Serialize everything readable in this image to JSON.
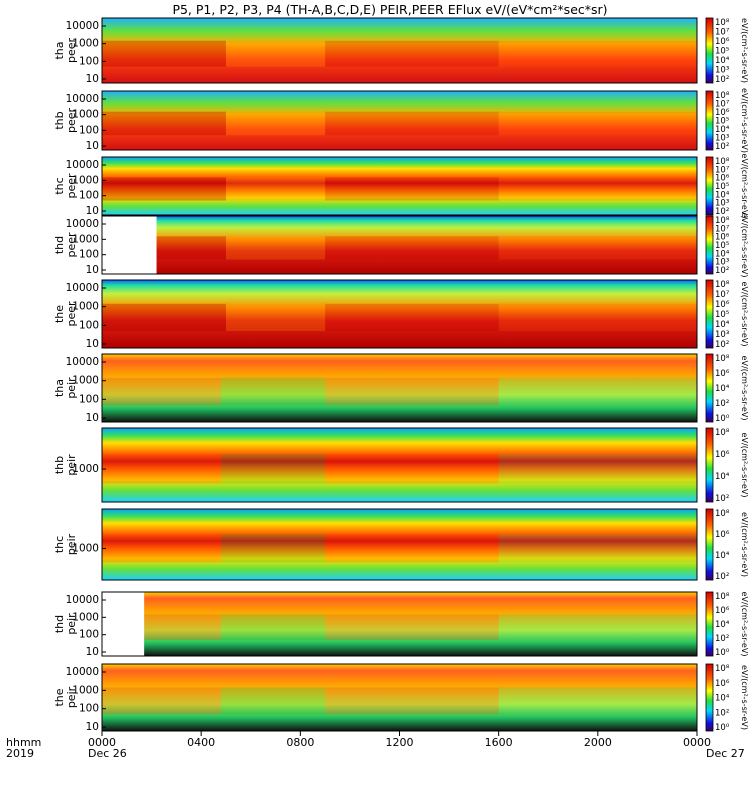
{
  "title": "P5, P1, P2, P3, P4 (TH-A,B,C,D,E) PEIR,PEER EFlux eV/(eV*cm²*sec*sr)",
  "colorbar_label": "eV/(cm²-s-sr-eV)",
  "footer": {
    "hhmm": "hhmm",
    "year": "2019",
    "date_start": "Dec 26",
    "date_end": "Dec 27"
  },
  "chart_data": {
    "type": "heatmap",
    "x_ticks": [
      "0000",
      "0400",
      "0800",
      "1200",
      "1600",
      "2000",
      "0000"
    ],
    "x_range_hours": [
      0,
      24
    ],
    "y_scale": "log",
    "colorbar_ticks": [
      "10⁸",
      "10⁷",
      "10⁶",
      "10⁵",
      "10⁴",
      "10³",
      "10²"
    ],
    "colorbar_ticks_short": [
      "10⁸",
      "10⁶",
      "10⁴",
      "10²"
    ],
    "colorbar_ticks_ion": [
      "10⁸",
      "10⁶",
      "10⁴",
      "10²",
      "10⁰"
    ],
    "panels": [
      {
        "probe": "tha",
        "species": "peer",
        "y_ticks": [
          "10000",
          "1000",
          "100",
          "10"
        ]
      },
      {
        "probe": "thb",
        "species": "peer",
        "y_ticks": [
          "10000",
          "1000",
          "100",
          "10"
        ]
      },
      {
        "probe": "thc",
        "species": "peer",
        "y_ticks": [
          "10000",
          "1000",
          "100",
          "10"
        ]
      },
      {
        "probe": "thd",
        "species": "peer",
        "y_ticks": [
          "10000",
          "1000",
          "100",
          "10"
        ]
      },
      {
        "probe": "the",
        "species": "peer",
        "y_ticks": [
          "10000",
          "1000",
          "100",
          "10"
        ]
      },
      {
        "probe": "tha",
        "species": "peir",
        "y_ticks": [
          "10000",
          "1000",
          "100",
          "10"
        ]
      },
      {
        "probe": "thb",
        "species": "peir",
        "y_ticks": [
          "1000"
        ]
      },
      {
        "probe": "thc",
        "species": "peir",
        "y_ticks": [
          "1000"
        ]
      },
      {
        "probe": "thd",
        "species": "peir",
        "y_ticks": [
          "10000",
          "1000",
          "100",
          "10"
        ]
      },
      {
        "probe": "the",
        "species": "peir",
        "y_ticks": [
          "10000",
          "1000",
          "100",
          "10"
        ]
      }
    ]
  }
}
